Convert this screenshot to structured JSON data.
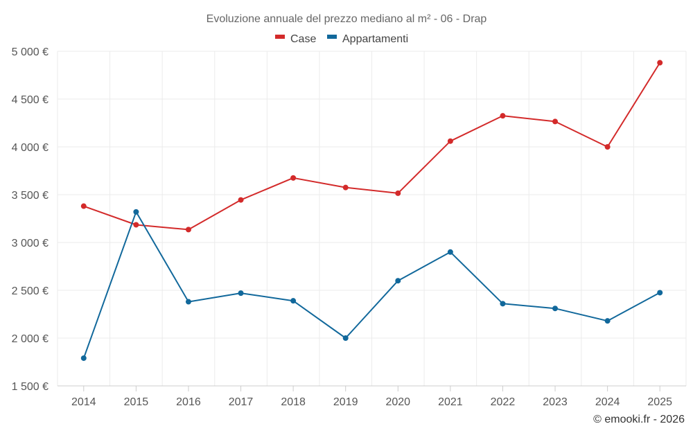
{
  "chart_data": {
    "type": "line",
    "title": "Evoluzione annuale del prezzo mediano al m² - 06 - Drap",
    "xlabel": "",
    "ylabel": "",
    "categories": [
      "2014",
      "2015",
      "2016",
      "2017",
      "2018",
      "2019",
      "2020",
      "2021",
      "2022",
      "2023",
      "2024",
      "2025"
    ],
    "ylim": [
      1500,
      5000
    ],
    "yticks": [
      1500,
      2000,
      2500,
      3000,
      3500,
      4000,
      4500,
      5000
    ],
    "ytick_labels": [
      "1 500 €",
      "2 000 €",
      "2 500 €",
      "3 000 €",
      "3 500 €",
      "4 000 €",
      "4 500 €",
      "5 000 €"
    ],
    "grid": true,
    "legend_position": "top-center",
    "series": [
      {
        "name": "Case",
        "color": "#d32a2a",
        "values": [
          3380,
          3185,
          3135,
          3445,
          3675,
          3575,
          3515,
          4060,
          4325,
          4265,
          4000,
          4880
        ]
      },
      {
        "name": "Appartamenti",
        "color": "#11689b",
        "values": [
          1790,
          3320,
          2380,
          2470,
          2390,
          2000,
          2600,
          2900,
          2360,
          2310,
          2180,
          2475
        ]
      }
    ],
    "credit": "© emooki.fr - 2026"
  }
}
